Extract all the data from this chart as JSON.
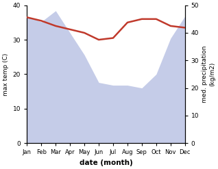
{
  "months": [
    "Jan",
    "Feb",
    "Mar",
    "Apr",
    "May",
    "Jun",
    "Jul",
    "Aug",
    "Sep",
    "Oct",
    "Nov",
    "Dec"
  ],
  "month_indices": [
    0,
    1,
    2,
    3,
    4,
    5,
    6,
    7,
    8,
    9,
    10,
    11
  ],
  "precipitation": [
    46,
    44,
    48,
    40,
    32,
    22,
    21,
    21,
    20,
    25,
    38,
    46
  ],
  "temperature": [
    36.5,
    35.5,
    34,
    33,
    32,
    30,
    30.5,
    35,
    36,
    36,
    34,
    33.5
  ],
  "temp_color": "#c0392b",
  "precip_fill_color": "#c5cce8",
  "precip_line_color": "#aab4d8",
  "xlabel": "date (month)",
  "ylabel_left": "max temp (C)",
  "ylabel_right": "med. precipitation\n(kg/m2)",
  "ylim_left": [
    0,
    40
  ],
  "ylim_right": [
    0,
    50
  ],
  "yticks_left": [
    0,
    10,
    20,
    30,
    40
  ],
  "yticks_right": [
    0,
    10,
    20,
    30,
    40,
    50
  ],
  "bg_color": "#ffffff",
  "temp_linewidth": 1.8,
  "figsize": [
    3.18,
    2.47
  ],
  "dpi": 100
}
